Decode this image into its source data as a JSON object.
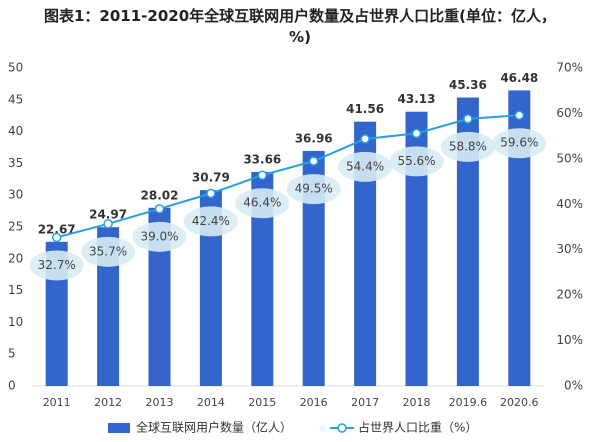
{
  "chart_data": {
    "type": "bar-line",
    "title": "图表1：2011-2020年全球互联网用户数量及占世界人口比重(单位：亿人，%)",
    "categories": [
      "2011",
      "2012",
      "2013",
      "2014",
      "2015",
      "2016",
      "2017",
      "2018",
      "2019.6",
      "2020.6"
    ],
    "series": [
      {
        "name": "全球互联网用户数量（亿人）",
        "type": "bar",
        "color": "#3366cc",
        "values": [
          22.67,
          24.97,
          28.02,
          30.79,
          33.66,
          36.96,
          41.56,
          43.13,
          45.36,
          46.48
        ]
      },
      {
        "name": "占世界人口比重（%）",
        "type": "line",
        "color": "#26a0e0",
        "axis": "y2",
        "values": [
          32.7,
          35.7,
          39.0,
          42.4,
          46.4,
          49.5,
          54.4,
          55.6,
          58.8,
          59.6
        ],
        "value_labels": [
          "32.7%",
          "35.7%",
          "39.0%",
          "42.4%",
          "46.4%",
          "49.5%",
          "54.4%",
          "55.6%",
          "58.8%",
          "59.6%"
        ]
      }
    ],
    "ylim": [
      0,
      50
    ],
    "yticks": [
      0,
      5,
      10,
      15,
      20,
      25,
      30,
      35,
      40,
      45,
      50
    ],
    "y2lim": [
      0,
      70
    ],
    "y2ticks": [
      {
        "value": 0,
        "label": "0%"
      },
      {
        "value": 10,
        "label": "10%"
      },
      {
        "value": 20,
        "label": "20%"
      },
      {
        "value": 30,
        "label": "30%"
      },
      {
        "value": 40,
        "label": "40%"
      },
      {
        "value": 50,
        "label": "50%"
      },
      {
        "value": 60,
        "label": "60%"
      },
      {
        "value": 70,
        "label": "70%"
      }
    ],
    "legend": "bottom"
  }
}
